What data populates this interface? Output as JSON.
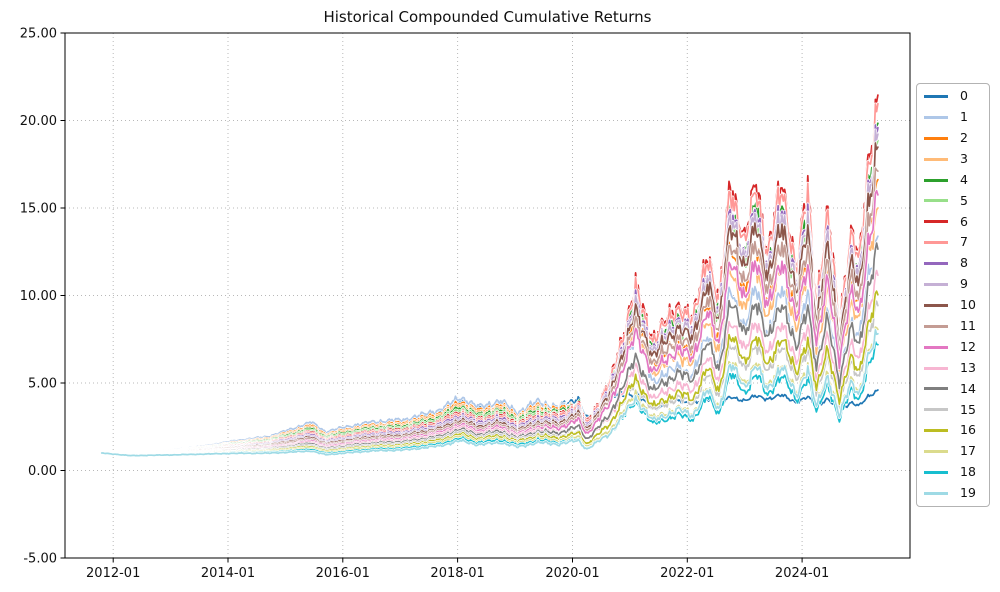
{
  "chart_data": {
    "type": "line",
    "title": "Historical Compounded Cumulative Returns",
    "grid": "dotted",
    "legend_position": "center right outside",
    "x_axis": {
      "tick_labels": [
        "2012-01",
        "2014-01",
        "2016-01",
        "2018-01",
        "2020-01",
        "2022-01",
        "2024-01"
      ],
      "tick_years": [
        2012,
        2014,
        2016,
        2018,
        2020,
        2022,
        2024
      ],
      "range": [
        2011.16,
        2025.88
      ]
    },
    "y_axis": {
      "tick_labels": [
        "-5.00",
        "0.00",
        "5.00",
        "10.00",
        "15.00",
        "20.00",
        "25.00"
      ],
      "tick_values": [
        -5,
        0,
        5,
        10,
        15,
        20,
        25
      ],
      "range": [
        -5,
        25
      ]
    },
    "x_years": [
      2011.8,
      2012.3,
      2013.0,
      2013.6,
      2014.1,
      2014.7,
      2015.1,
      2015.45,
      2015.7,
      2016.0,
      2016.5,
      2017.1,
      2017.7,
      2018.05,
      2018.35,
      2018.75,
      2019.05,
      2019.4,
      2019.75,
      2020.1,
      2020.25,
      2020.65,
      2021.1,
      2021.4,
      2021.85,
      2022.1,
      2022.35,
      2022.55,
      2022.75,
      2023.0,
      2023.2,
      2023.4,
      2023.65,
      2023.9,
      2024.1,
      2024.25,
      2024.45,
      2024.65,
      2024.85,
      2025.0,
      2025.15,
      2025.32
    ],
    "series": [
      {
        "name": "0",
        "color": "#1f77b4",
        "values": [
          1.0,
          0.97,
          1.16,
          1.39,
          1.65,
          1.89,
          2.29,
          2.68,
          2.14,
          2.37,
          2.68,
          2.83,
          3.37,
          4.05,
          3.52,
          3.83,
          3.21,
          3.83,
          3.6,
          4.13,
          2.91,
          4.3,
          4.4,
          3.5,
          4.0,
          3.8,
          4.1,
          3.7,
          4.2,
          4.0,
          4.25,
          4.1,
          4.3,
          3.9,
          4.2,
          3.7,
          4.1,
          3.4,
          3.9,
          3.7,
          4.2,
          4.6
        ]
      },
      {
        "name": "1",
        "color": "#aec7e8",
        "values": [
          1.0,
          0.98,
          1.17,
          1.41,
          1.69,
          1.94,
          2.36,
          2.77,
          2.21,
          2.45,
          2.77,
          2.92,
          3.48,
          4.19,
          3.63,
          3.95,
          3.32,
          3.95,
          3.57,
          3.87,
          2.66,
          4.31,
          7.8,
          5.09,
          5.94,
          5.4,
          7.88,
          5.94,
          10.48,
          8.1,
          10.48,
          7.78,
          10.37,
          7.24,
          10.15,
          6.16,
          9.18,
          5.4,
          8.53,
          7.56,
          11.02,
          13.39
        ]
      },
      {
        "name": "2",
        "color": "#ff7f0e",
        "values": [
          1.0,
          0.96,
          1.14,
          1.36,
          1.61,
          1.84,
          2.22,
          2.59,
          2.07,
          2.29,
          2.59,
          2.74,
          3.26,
          3.92,
          3.4,
          3.7,
          3.11,
          3.7,
          3.44,
          3.89,
          2.72,
          4.63,
          8.93,
          6.09,
          7.37,
          6.7,
          9.78,
          7.37,
          13.0,
          10.05,
          13.0,
          9.65,
          12.86,
          8.98,
          12.6,
          7.64,
          11.39,
          6.7,
          10.59,
          9.38,
          13.67,
          16.62
        ]
      },
      {
        "name": "3",
        "color": "#ffbb78",
        "values": [
          1.0,
          0.96,
          1.13,
          1.34,
          1.57,
          1.79,
          2.15,
          2.5,
          2.0,
          2.22,
          2.5,
          2.65,
          3.15,
          3.79,
          3.29,
          3.58,
          3.0,
          3.58,
          3.3,
          3.69,
          2.57,
          4.32,
          8.21,
          5.54,
          6.66,
          6.05,
          8.83,
          6.66,
          11.74,
          9.08,
          11.74,
          8.71,
          11.62,
          8.11,
          11.37,
          6.9,
          10.29,
          6.05,
          9.56,
          8.47,
          12.34,
          15.0
        ]
      },
      {
        "name": "4",
        "color": "#2ca02c",
        "values": [
          1.0,
          0.95,
          1.11,
          1.31,
          1.54,
          1.73,
          2.08,
          2.42,
          1.93,
          2.14,
          2.42,
          2.55,
          3.04,
          3.66,
          3.17,
          3.45,
          2.9,
          3.45,
          3.3,
          3.9,
          2.77,
          4.95,
          10.06,
          7.1,
          8.8,
          8.0,
          11.68,
          8.8,
          15.52,
          12.0,
          15.52,
          11.52,
          15.36,
          10.72,
          15.04,
          9.12,
          13.6,
          8.0,
          12.64,
          11.2,
          16.32,
          19.84
        ]
      },
      {
        "name": "5",
        "color": "#98df8a",
        "values": [
          1.0,
          0.94,
          1.1,
          1.29,
          1.5,
          1.68,
          2.01,
          2.33,
          1.86,
          2.06,
          2.33,
          2.46,
          2.93,
          3.52,
          3.06,
          3.33,
          2.79,
          3.33,
          3.18,
          3.74,
          2.66,
          4.73,
          9.58,
          6.75,
          8.36,
          7.6,
          11.1,
          8.36,
          14.74,
          11.4,
          14.74,
          10.94,
          14.59,
          10.18,
          14.29,
          8.66,
          12.92,
          7.6,
          12.01,
          10.64,
          15.5,
          18.85
        ]
      },
      {
        "name": "6",
        "color": "#d62728",
        "values": [
          1.0,
          0.94,
          1.08,
          1.26,
          1.46,
          1.63,
          1.94,
          2.24,
          1.79,
          1.98,
          2.24,
          2.37,
          2.82,
          3.39,
          2.94,
          3.2,
          2.69,
          3.2,
          3.13,
          3.81,
          2.74,
          5.04,
          10.54,
          7.58,
          9.52,
          8.65,
          12.63,
          9.52,
          16.78,
          12.98,
          16.78,
          12.46,
          16.61,
          11.59,
          16.26,
          9.86,
          14.71,
          8.65,
          13.67,
          12.11,
          17.65,
          21.45
        ]
      },
      {
        "name": "7",
        "color": "#ff9896",
        "values": [
          1.0,
          0.93,
          1.07,
          1.24,
          1.43,
          1.59,
          1.88,
          2.17,
          1.74,
          1.92,
          2.17,
          2.29,
          2.73,
          3.29,
          2.85,
          3.1,
          2.6,
          3.1,
          3.04,
          3.7,
          2.66,
          4.91,
          10.28,
          7.4,
          9.3,
          8.45,
          12.34,
          9.3,
          16.39,
          12.68,
          16.39,
          12.17,
          16.22,
          11.32,
          15.89,
          9.63,
          14.37,
          8.45,
          13.35,
          11.83,
          17.24,
          20.96
        ]
      },
      {
        "name": "8",
        "color": "#9467bd",
        "values": [
          1.0,
          0.93,
          1.06,
          1.22,
          1.39,
          1.54,
          1.82,
          2.08,
          1.67,
          1.84,
          2.08,
          2.2,
          2.62,
          3.15,
          2.74,
          2.98,
          2.5,
          2.98,
          2.91,
          3.52,
          2.53,
          4.64,
          9.66,
          6.93,
          8.69,
          7.9,
          11.53,
          8.69,
          15.33,
          11.85,
          15.33,
          11.38,
          15.17,
          10.59,
          14.85,
          9.01,
          13.43,
          7.9,
          12.48,
          11.06,
          16.12,
          19.59
        ]
      },
      {
        "name": "9",
        "color": "#c5b0d5",
        "values": [
          1.0,
          0.92,
          1.04,
          1.19,
          1.36,
          1.49,
          1.75,
          2.0,
          1.6,
          1.77,
          2.0,
          2.11,
          2.51,
          3.02,
          2.62,
          2.85,
          2.39,
          2.85,
          2.79,
          3.4,
          2.45,
          4.51,
          9.44,
          6.79,
          8.53,
          7.75,
          11.32,
          8.53,
          15.04,
          11.63,
          15.04,
          11.16,
          14.88,
          10.39,
          14.57,
          8.84,
          13.18,
          7.75,
          12.25,
          10.85,
          15.81,
          19.22
        ]
      },
      {
        "name": "10",
        "color": "#8c564b",
        "values": [
          1.0,
          0.91,
          1.03,
          1.17,
          1.32,
          1.44,
          1.68,
          1.91,
          1.53,
          1.69,
          1.91,
          2.02,
          2.4,
          2.89,
          2.51,
          2.73,
          2.29,
          2.73,
          2.67,
          3.26,
          2.34,
          4.32,
          9.06,
          6.53,
          8.2,
          7.45,
          10.88,
          8.2,
          14.45,
          11.18,
          14.45,
          10.73,
          14.3,
          9.98,
          14.01,
          8.49,
          12.67,
          7.45,
          11.77,
          10.43,
          15.2,
          18.48
        ]
      },
      {
        "name": "11",
        "color": "#c49c94",
        "values": [
          1.0,
          0.91,
          1.01,
          1.14,
          1.28,
          1.39,
          1.61,
          1.82,
          1.46,
          1.61,
          1.82,
          1.92,
          2.29,
          2.76,
          2.39,
          2.6,
          2.18,
          2.6,
          2.54,
          3.08,
          2.21,
          4.05,
          8.44,
          6.06,
          7.59,
          6.9,
          10.07,
          7.59,
          13.39,
          10.35,
          13.39,
          9.94,
          13.25,
          9.25,
          12.97,
          7.87,
          11.73,
          6.9,
          10.9,
          9.66,
          14.08,
          17.11
        ]
      },
      {
        "name": "12",
        "color": "#e377c2",
        "values": [
          1.0,
          0.9,
          0.99,
          1.11,
          1.24,
          1.34,
          1.52,
          1.73,
          1.39,
          1.53,
          1.73,
          1.83,
          2.18,
          2.62,
          2.28,
          2.48,
          2.08,
          2.48,
          2.41,
          2.89,
          2.07,
          3.78,
          7.82,
          5.59,
          6.99,
          6.35,
          9.27,
          6.99,
          12.32,
          9.53,
          12.32,
          9.14,
          12.19,
          8.51,
          11.94,
          7.24,
          10.8,
          6.35,
          10.03,
          8.89,
          12.95,
          15.75
        ]
      },
      {
        "name": "13",
        "color": "#f7b6d2",
        "values": [
          1.0,
          0.89,
          0.98,
          1.09,
          1.21,
          1.29,
          1.47,
          1.65,
          1.32,
          1.46,
          1.65,
          1.74,
          2.07,
          2.49,
          2.16,
          2.35,
          1.97,
          2.35,
          2.2,
          2.51,
          1.76,
          3.03,
          5.91,
          4.07,
          4.95,
          4.5,
          6.57,
          4.95,
          8.73,
          6.75,
          8.73,
          6.48,
          8.64,
          6.03,
          8.46,
          5.13,
          7.65,
          4.5,
          7.11,
          6.3,
          9.18,
          11.16
        ]
      },
      {
        "name": "14",
        "color": "#7f7f7f",
        "values": [
          1.0,
          0.89,
          0.97,
          1.06,
          1.17,
          1.24,
          1.4,
          1.56,
          1.25,
          1.38,
          1.56,
          1.65,
          1.96,
          2.36,
          2.05,
          2.23,
          1.87,
          2.23,
          2.13,
          2.51,
          1.78,
          3.17,
          6.43,
          4.53,
          5.61,
          5.1,
          7.45,
          5.61,
          9.89,
          7.65,
          9.89,
          7.34,
          9.79,
          6.83,
          9.59,
          5.81,
          8.67,
          5.1,
          8.06,
          7.14,
          10.4,
          12.65
        ]
      },
      {
        "name": "15",
        "color": "#c7c7c7",
        "values": [
          1.0,
          0.88,
          0.95,
          1.04,
          1.13,
          1.19,
          1.33,
          1.47,
          1.18,
          1.3,
          1.47,
          1.55,
          1.85,
          2.23,
          1.93,
          2.1,
          1.76,
          2.1,
          1.95,
          2.21,
          1.54,
          2.63,
          5.06,
          3.46,
          4.18,
          3.8,
          5.55,
          4.18,
          7.37,
          5.7,
          7.37,
          5.47,
          7.3,
          5.09,
          7.14,
          4.33,
          6.46,
          3.8,
          6.0,
          5.32,
          7.75,
          9.42
        ]
      },
      {
        "name": "16",
        "color": "#bcbd22",
        "values": [
          1.0,
          0.87,
          0.94,
          1.01,
          1.09,
          1.14,
          1.26,
          1.38,
          1.11,
          1.22,
          1.38,
          1.46,
          1.74,
          2.09,
          1.82,
          1.98,
          1.66,
          1.98,
          1.86,
          2.15,
          1.51,
          2.64,
          5.23,
          3.64,
          4.46,
          4.05,
          5.91,
          4.46,
          7.86,
          6.08,
          7.86,
          5.83,
          7.78,
          5.43,
          7.61,
          4.62,
          6.89,
          4.05,
          6.4,
          5.67,
          8.26,
          10.04
        ]
      },
      {
        "name": "17",
        "color": "#dbdb8d",
        "values": [
          1.0,
          0.86,
          0.92,
          0.99,
          1.06,
          1.09,
          1.19,
          1.3,
          1.04,
          1.15,
          1.3,
          1.37,
          1.63,
          1.96,
          1.7,
          1.85,
          1.55,
          1.85,
          1.71,
          1.93,
          1.35,
          2.28,
          4.37,
          2.97,
          3.58,
          3.25,
          4.75,
          3.58,
          6.31,
          4.88,
          6.31,
          4.68,
          6.24,
          4.36,
          6.11,
          3.71,
          5.53,
          3.25,
          5.14,
          4.55,
          6.63,
          8.06
        ]
      },
      {
        "name": "18",
        "color": "#17becf",
        "values": [
          1.0,
          0.86,
          0.91,
          0.96,
          1.02,
          1.04,
          1.12,
          1.21,
          0.97,
          1.07,
          1.21,
          1.28,
          1.52,
          1.83,
          1.59,
          1.73,
          1.45,
          1.73,
          1.59,
          1.78,
          1.24,
          2.08,
          3.94,
          2.66,
          3.19,
          2.9,
          4.23,
          3.19,
          5.63,
          4.35,
          5.63,
          4.18,
          5.57,
          3.89,
          5.45,
          3.31,
          4.93,
          2.9,
          4.58,
          4.06,
          5.92,
          7.19
        ]
      },
      {
        "name": "19",
        "color": "#9edae5",
        "values": [
          1.0,
          0.85,
          0.89,
          0.94,
          0.98,
          0.99,
          1.05,
          1.12,
          0.9,
          0.99,
          1.12,
          1.18,
          1.41,
          1.7,
          1.47,
          1.6,
          1.34,
          1.6,
          1.5,
          1.72,
          1.21,
          2.1,
          4.11,
          2.84,
          3.47,
          3.15,
          4.6,
          3.47,
          6.11,
          4.73,
          6.11,
          4.54,
          6.05,
          4.22,
          5.92,
          3.59,
          5.36,
          3.15,
          4.98,
          4.41,
          6.43,
          7.81
        ]
      }
    ]
  }
}
